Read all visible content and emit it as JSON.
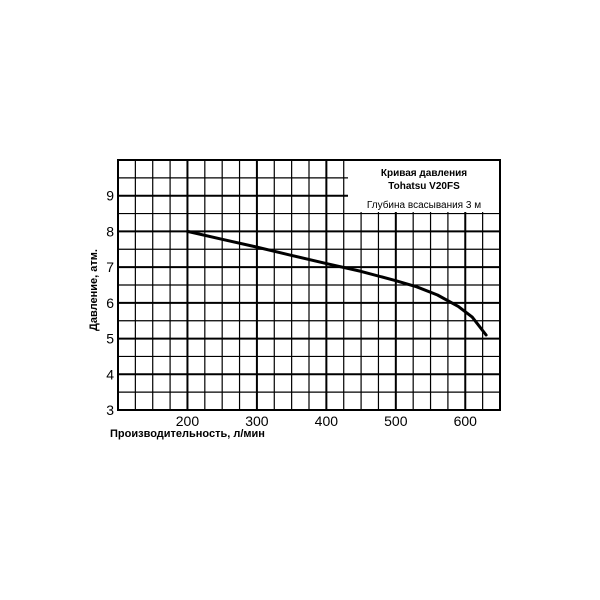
{
  "chart_data": {
    "type": "line",
    "title": "Кривая давления",
    "subtitle": "Tohatsu V20FS",
    "annotation": "Глубина всасывания 3 м",
    "xlabel": "Производительность, л/мин",
    "ylabel": "Давление, атм.",
    "xlim": [
      100,
      650
    ],
    "ylim": [
      3,
      10
    ],
    "x_ticks": [
      "200",
      "300",
      "400",
      "500",
      "600"
    ],
    "y_ticks": [
      "3",
      "4",
      "5",
      "6",
      "7",
      "8",
      "9"
    ],
    "grid": true,
    "legend_position": "top-right",
    "series": [
      {
        "x": [
          200,
          250,
          300,
          350,
          400,
          450,
          500,
          530,
          560,
          590,
          610,
          630
        ],
        "y": [
          8.0,
          7.78,
          7.56,
          7.33,
          7.1,
          6.88,
          6.62,
          6.45,
          6.22,
          5.9,
          5.6,
          5.1
        ]
      }
    ]
  }
}
